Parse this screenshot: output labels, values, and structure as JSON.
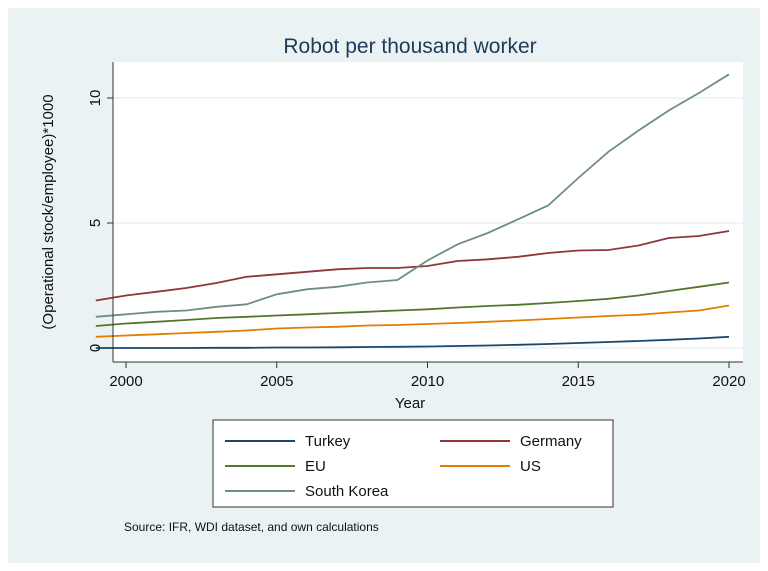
{
  "chart_data": {
    "type": "line",
    "title": "Robot per thousand worker",
    "xlabel": "Year",
    "ylabel": "(Operational stock/employee)*1000",
    "xlim": [
      1999,
      2020
    ],
    "ylim": [
      0,
      11
    ],
    "xticks": [
      2000,
      2005,
      2010,
      2015,
      2020
    ],
    "yticks": [
      0,
      5,
      10
    ],
    "grid": true,
    "legend_position": "bottom",
    "note": "Source: IFR, WDI dataset, and  own calculations",
    "x": [
      1999,
      2000,
      2001,
      2002,
      2003,
      2004,
      2005,
      2006,
      2007,
      2008,
      2009,
      2010,
      2011,
      2012,
      2013,
      2014,
      2015,
      2016,
      2017,
      2018,
      2019,
      2020
    ],
    "series": [
      {
        "name": "Turkey",
        "color": "#1a476f",
        "values": [
          0,
          0,
          0,
          0,
          0.01,
          0.01,
          0.02,
          0.02,
          0.03,
          0.04,
          0.05,
          0.06,
          0.08,
          0.1,
          0.13,
          0.16,
          0.2,
          0.24,
          0.28,
          0.33,
          0.38,
          0.45
        ]
      },
      {
        "name": "Germany",
        "color": "#90353b",
        "values": [
          1.9,
          2.1,
          2.25,
          2.4,
          2.6,
          2.85,
          2.95,
          3.05,
          3.15,
          3.2,
          3.2,
          3.28,
          3.48,
          3.55,
          3.65,
          3.8,
          3.9,
          3.92,
          4.1,
          4.4,
          4.48,
          4.68
        ]
      },
      {
        "name": "EU",
        "color": "#55752f",
        "values": [
          0.88,
          0.98,
          1.05,
          1.12,
          1.2,
          1.25,
          1.3,
          1.35,
          1.4,
          1.45,
          1.5,
          1.55,
          1.62,
          1.68,
          1.73,
          1.8,
          1.88,
          1.97,
          2.1,
          2.28,
          2.45,
          2.62
        ]
      },
      {
        "name": "US",
        "color": "#e37e00",
        "values": [
          0.45,
          0.5,
          0.55,
          0.6,
          0.65,
          0.7,
          0.78,
          0.82,
          0.85,
          0.9,
          0.92,
          0.96,
          1.0,
          1.05,
          1.1,
          1.16,
          1.22,
          1.28,
          1.33,
          1.42,
          1.5,
          1.7
        ]
      },
      {
        "name": "South Korea",
        "color": "#6e8e84",
        "values": [
          1.25,
          1.35,
          1.45,
          1.5,
          1.65,
          1.75,
          2.15,
          2.35,
          2.45,
          2.62,
          2.72,
          3.5,
          4.15,
          4.6,
          5.15,
          5.7,
          6.8,
          7.85,
          8.7,
          9.5,
          10.2,
          10.95
        ]
      }
    ]
  }
}
